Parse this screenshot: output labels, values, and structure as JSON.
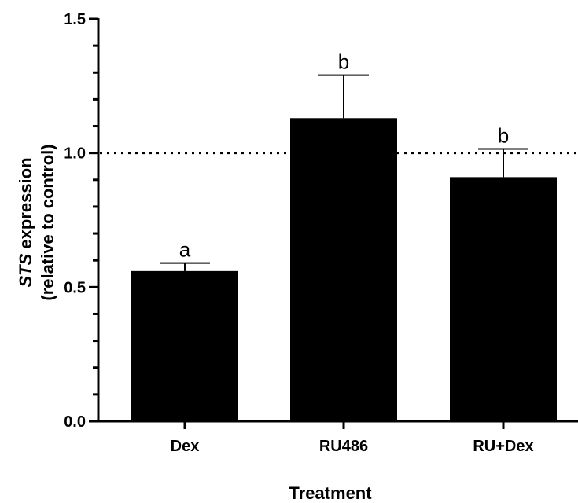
{
  "chart_data": {
    "type": "bar",
    "categories": [
      "Dex",
      "RU486",
      "RU+Dex"
    ],
    "values": [
      0.56,
      1.13,
      0.91
    ],
    "error_upper": [
      0.59,
      1.29,
      1.015
    ],
    "significance_letters": [
      "a",
      "b",
      "b"
    ],
    "reference_line": 1.0,
    "xlabel": "Treatment",
    "ylabel_italic": "STS",
    "ylabel_rest": " expression",
    "ylabel_line2": "(relative to control)",
    "ylim": [
      0,
      1.5
    ],
    "yticks": [
      "0.0",
      "0.5",
      "1.0",
      "1.5"
    ],
    "bar_color": "#000000",
    "grid": false
  }
}
